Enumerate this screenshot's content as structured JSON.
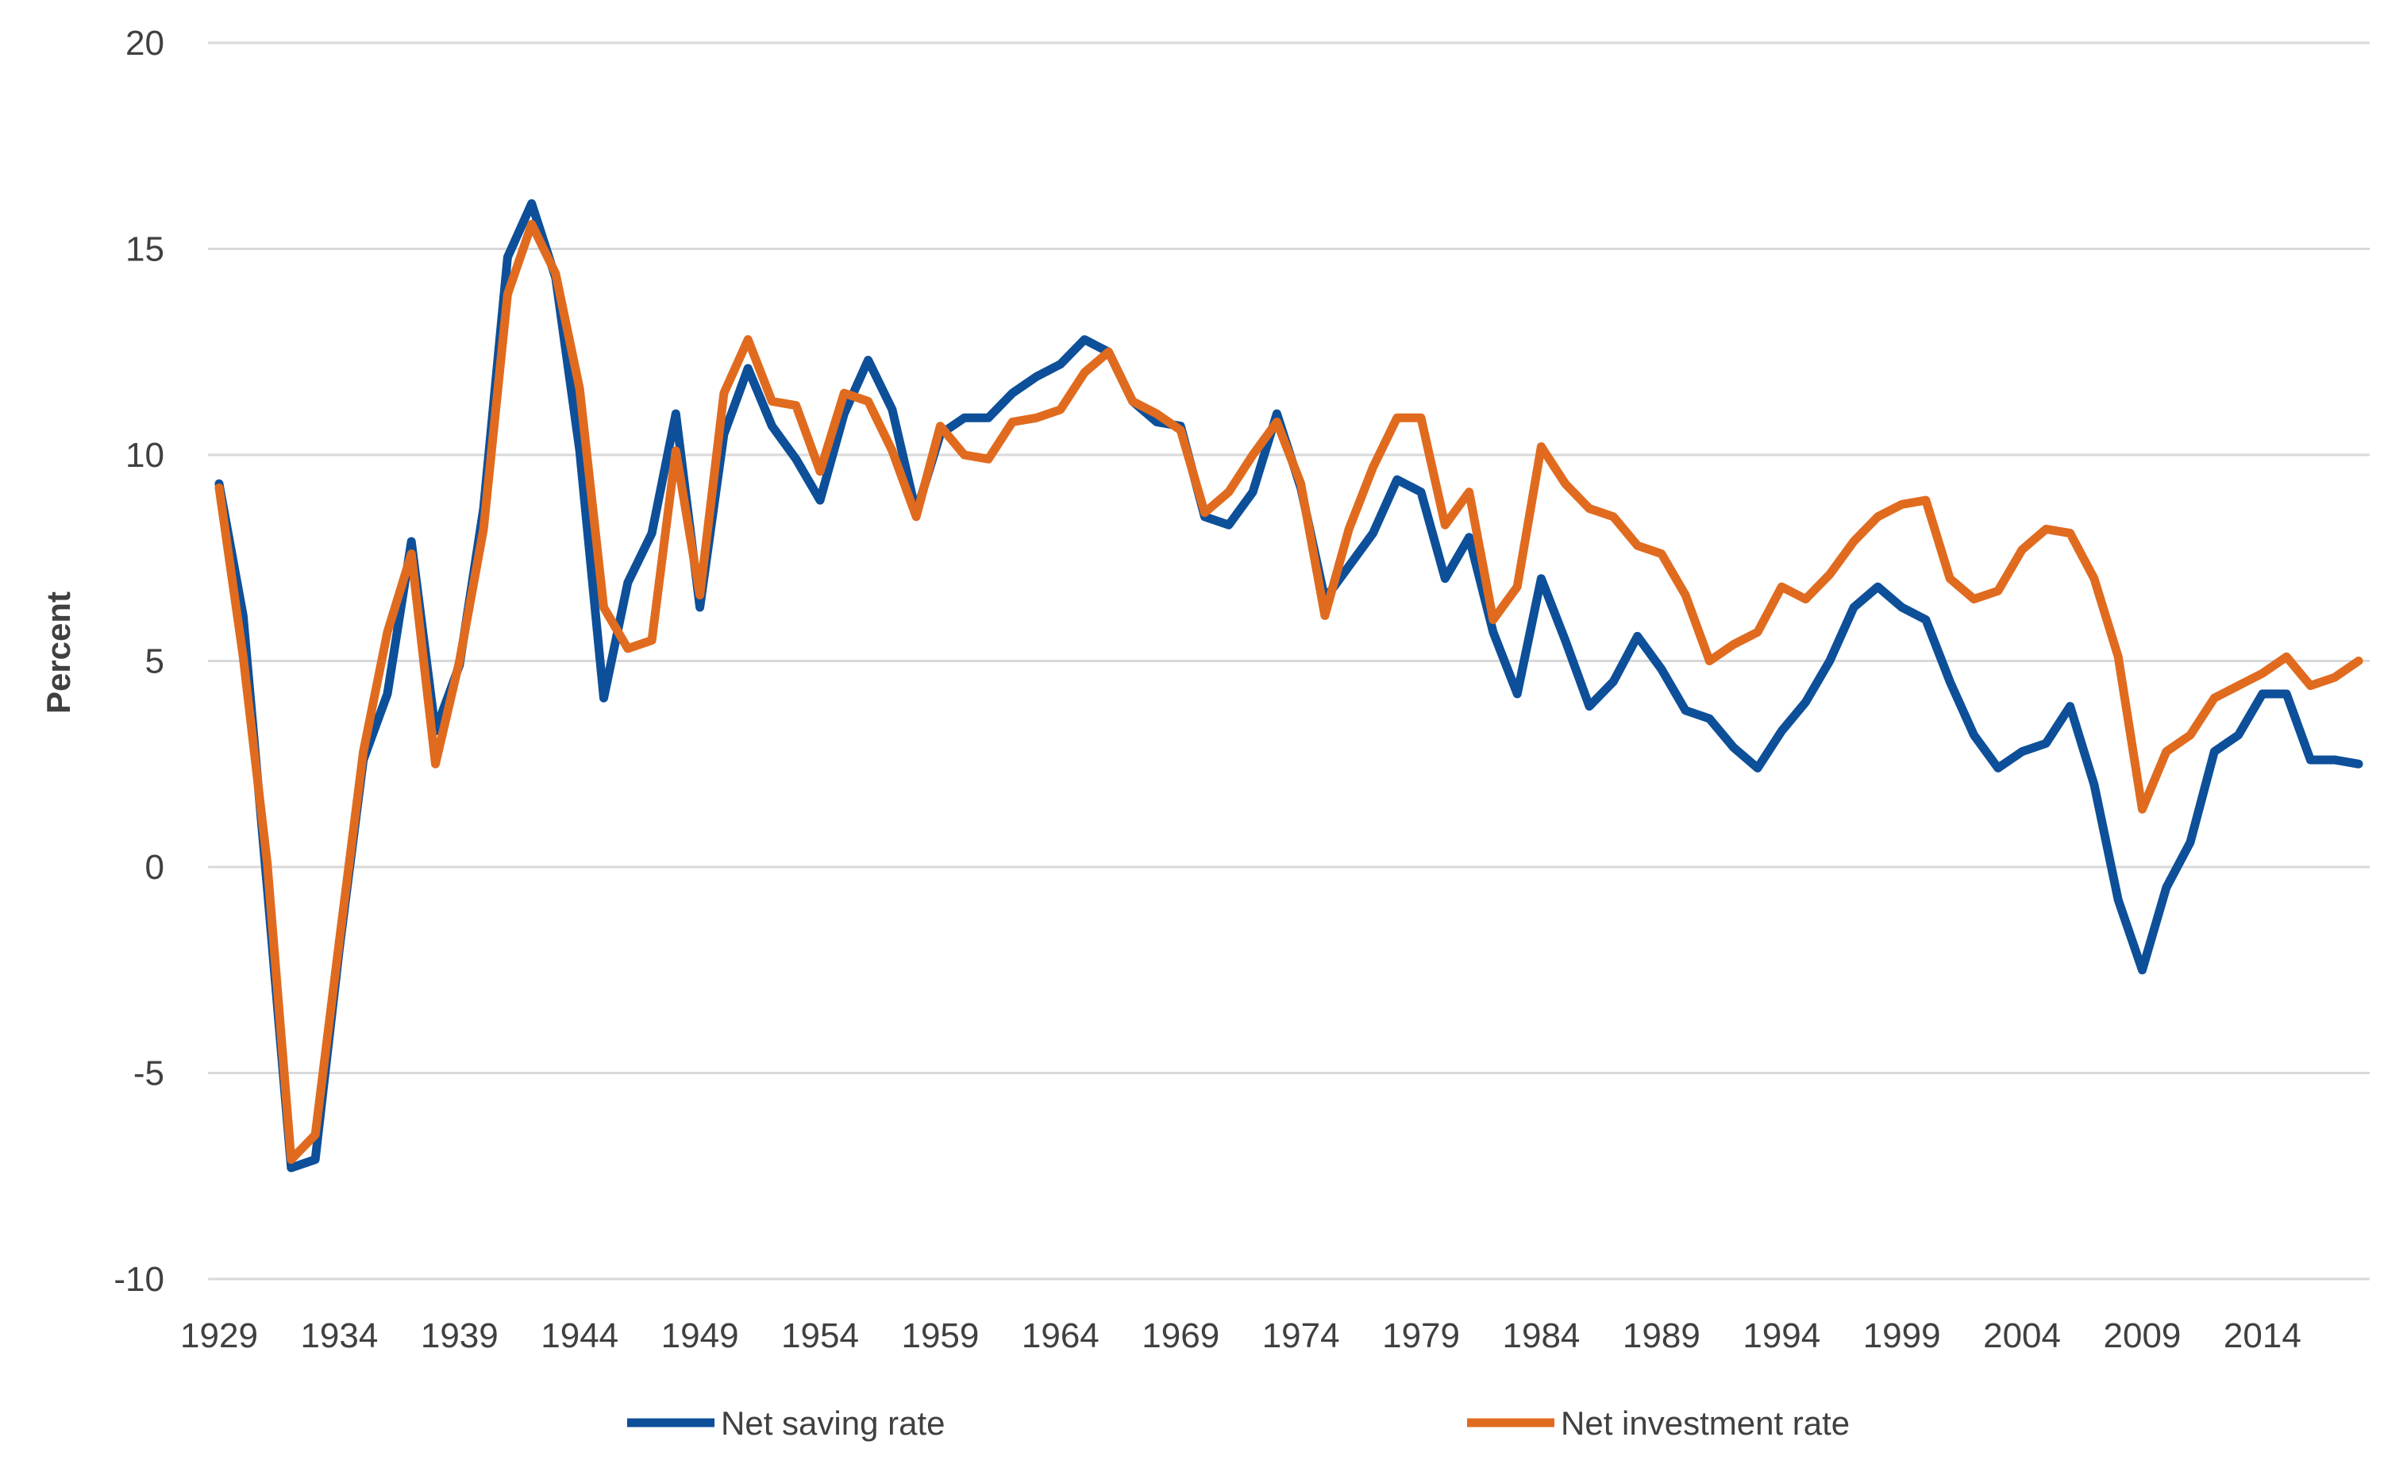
{
  "chart_data": {
    "type": "line",
    "title": "",
    "xlabel": "",
    "ylabel": "Percent",
    "ylim": [
      -10,
      20
    ],
    "yticks": [
      -10,
      -5,
      0,
      5,
      10,
      15,
      20
    ],
    "xtick_labels": [
      "1929",
      "1934",
      "1939",
      "1944",
      "1949",
      "1954",
      "1959",
      "1964",
      "1969",
      "1974",
      "1979",
      "1984",
      "1989",
      "1994",
      "1999",
      "2004",
      "2009",
      "2014"
    ],
    "grid": true,
    "legend_position": "bottom",
    "x": [
      1929,
      1930,
      1931,
      1932,
      1933,
      1934,
      1935,
      1936,
      1937,
      1938,
      1939,
      1940,
      1941,
      1942,
      1943,
      1944,
      1945,
      1946,
      1947,
      1948,
      1949,
      1950,
      1951,
      1952,
      1953,
      1954,
      1955,
      1956,
      1957,
      1958,
      1959,
      1960,
      1961,
      1962,
      1963,
      1964,
      1965,
      1966,
      1967,
      1968,
      1969,
      1970,
      1971,
      1972,
      1973,
      1974,
      1975,
      1976,
      1977,
      1978,
      1979,
      1980,
      1981,
      1982,
      1983,
      1984,
      1985,
      1986,
      1987,
      1988,
      1989,
      1990,
      1991,
      1992,
      1993,
      1994,
      1995,
      1996,
      1997,
      1998,
      1999,
      2000,
      2001,
      2002,
      2003,
      2004,
      2005,
      2006,
      2007,
      2008,
      2009,
      2010,
      2011,
      2012,
      2013,
      2014,
      2015,
      2016,
      2017,
      2018
    ],
    "series": [
      {
        "name": "Net saving rate",
        "color": "#0d4f99",
        "values": [
          9.3,
          6.1,
          -0.5,
          -7.3,
          -7.1,
          -2.0,
          2.6,
          4.2,
          7.9,
          3.3,
          4.9,
          8.7,
          14.8,
          16.1,
          14.3,
          10.1,
          4.1,
          6.9,
          8.1,
          11.0,
          6.3,
          10.5,
          12.1,
          10.7,
          9.9,
          8.9,
          11.0,
          12.3,
          11.1,
          8.6,
          10.5,
          10.9,
          10.9,
          11.5,
          11.9,
          12.2,
          12.8,
          12.5,
          11.3,
          10.8,
          10.7,
          8.5,
          8.3,
          9.1,
          11.0,
          9.2,
          6.5,
          7.3,
          8.1,
          9.4,
          9.1,
          7.0,
          8.0,
          5.7,
          4.2,
          7.0,
          5.5,
          3.9,
          4.5,
          5.6,
          4.8,
          3.8,
          3.6,
          2.9,
          2.4,
          3.3,
          4.0,
          5.0,
          6.3,
          6.8,
          6.3,
          6.0,
          4.5,
          3.2,
          2.4,
          2.8,
          3.0,
          3.9,
          2.0,
          -0.8,
          -2.5,
          -0.5,
          0.6,
          2.8,
          3.2,
          4.2,
          4.2,
          2.6,
          2.6,
          2.5
        ]
      },
      {
        "name": "Net investment rate",
        "color": "#e06b1f",
        "values": [
          9.2,
          5.1,
          0.1,
          -7.1,
          -6.5,
          -1.8,
          2.8,
          5.7,
          7.6,
          2.5,
          5.0,
          8.2,
          13.9,
          15.6,
          14.4,
          11.6,
          6.3,
          5.3,
          5.5,
          10.1,
          6.6,
          11.5,
          12.8,
          11.3,
          11.2,
          9.6,
          11.5,
          11.3,
          10.1,
          8.5,
          10.7,
          10.0,
          9.9,
          10.8,
          10.9,
          11.1,
          12.0,
          12.5,
          11.3,
          11.0,
          10.6,
          8.6,
          9.1,
          10.0,
          10.8,
          9.3,
          6.1,
          8.2,
          9.7,
          10.9,
          10.9,
          8.3,
          9.1,
          6.0,
          6.8,
          10.2,
          9.3,
          8.7,
          8.5,
          7.8,
          7.6,
          6.6,
          5.0,
          5.4,
          5.7,
          6.8,
          6.5,
          7.1,
          7.9,
          8.5,
          8.8,
          8.9,
          7.0,
          6.5,
          6.7,
          7.7,
          8.2,
          8.1,
          7.0,
          5.1,
          1.4,
          2.8,
          3.2,
          4.1,
          4.4,
          4.7,
          5.1,
          4.4,
          4.6,
          5.0
        ]
      }
    ]
  }
}
